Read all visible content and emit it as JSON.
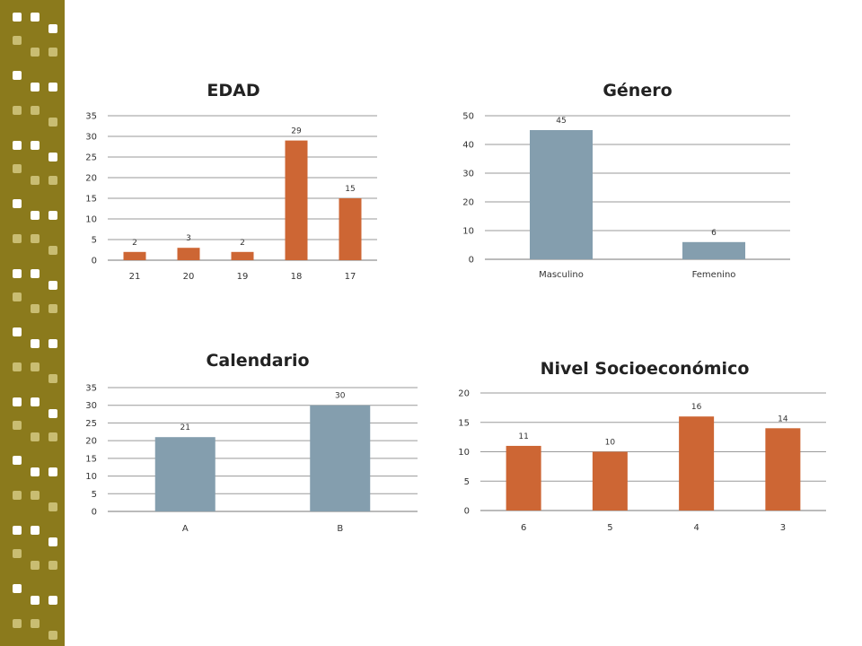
{
  "sidebar": {
    "color": "#8b7a1c",
    "square_light": "#ffffff",
    "square_dark": "#c9bd72"
  },
  "chart_data": [
    {
      "id": "edad",
      "type": "bar",
      "title": "EDAD",
      "categories": [
        "21",
        "20",
        "19",
        "18",
        "17"
      ],
      "values": [
        2,
        3,
        2,
        29,
        15
      ],
      "data_labels": [
        "2",
        "3",
        "2",
        "29",
        "15"
      ],
      "yticks": [
        "0",
        "5",
        "10",
        "15",
        "20",
        "25",
        "30",
        "35"
      ],
      "ylim": [
        0,
        35
      ],
      "color": "#cd6634",
      "grid": true,
      "legend": "none"
    },
    {
      "id": "genero",
      "type": "bar",
      "title": "Género",
      "categories": [
        "Masculino",
        "Femenino"
      ],
      "values": [
        45,
        6
      ],
      "data_labels": [
        "45",
        "6"
      ],
      "yticks": [
        "0",
        "10",
        "20",
        "30",
        "40",
        "50"
      ],
      "ylim": [
        0,
        50
      ],
      "color": "#849eae",
      "grid": true,
      "legend": "none"
    },
    {
      "id": "calendario",
      "type": "bar",
      "title": "Calendario",
      "categories": [
        "A",
        "B"
      ],
      "values": [
        21,
        30
      ],
      "data_labels": [
        "21",
        "30"
      ],
      "yticks": [
        "0",
        "5",
        "10",
        "15",
        "20",
        "25",
        "30",
        "35"
      ],
      "ylim": [
        0,
        35
      ],
      "color": "#849eae",
      "grid": true,
      "legend": "none"
    },
    {
      "id": "nivel",
      "type": "bar",
      "title": "Nivel Socioeconómico",
      "categories": [
        "6",
        "5",
        "4",
        "3"
      ],
      "values": [
        11,
        10,
        16,
        14
      ],
      "data_labels": [
        "11",
        "10",
        "16",
        "14"
      ],
      "yticks": [
        "0",
        "5",
        "10",
        "15",
        "20"
      ],
      "ylim": [
        0,
        20
      ],
      "color": "#cd6634",
      "grid": true,
      "legend": "none"
    }
  ]
}
